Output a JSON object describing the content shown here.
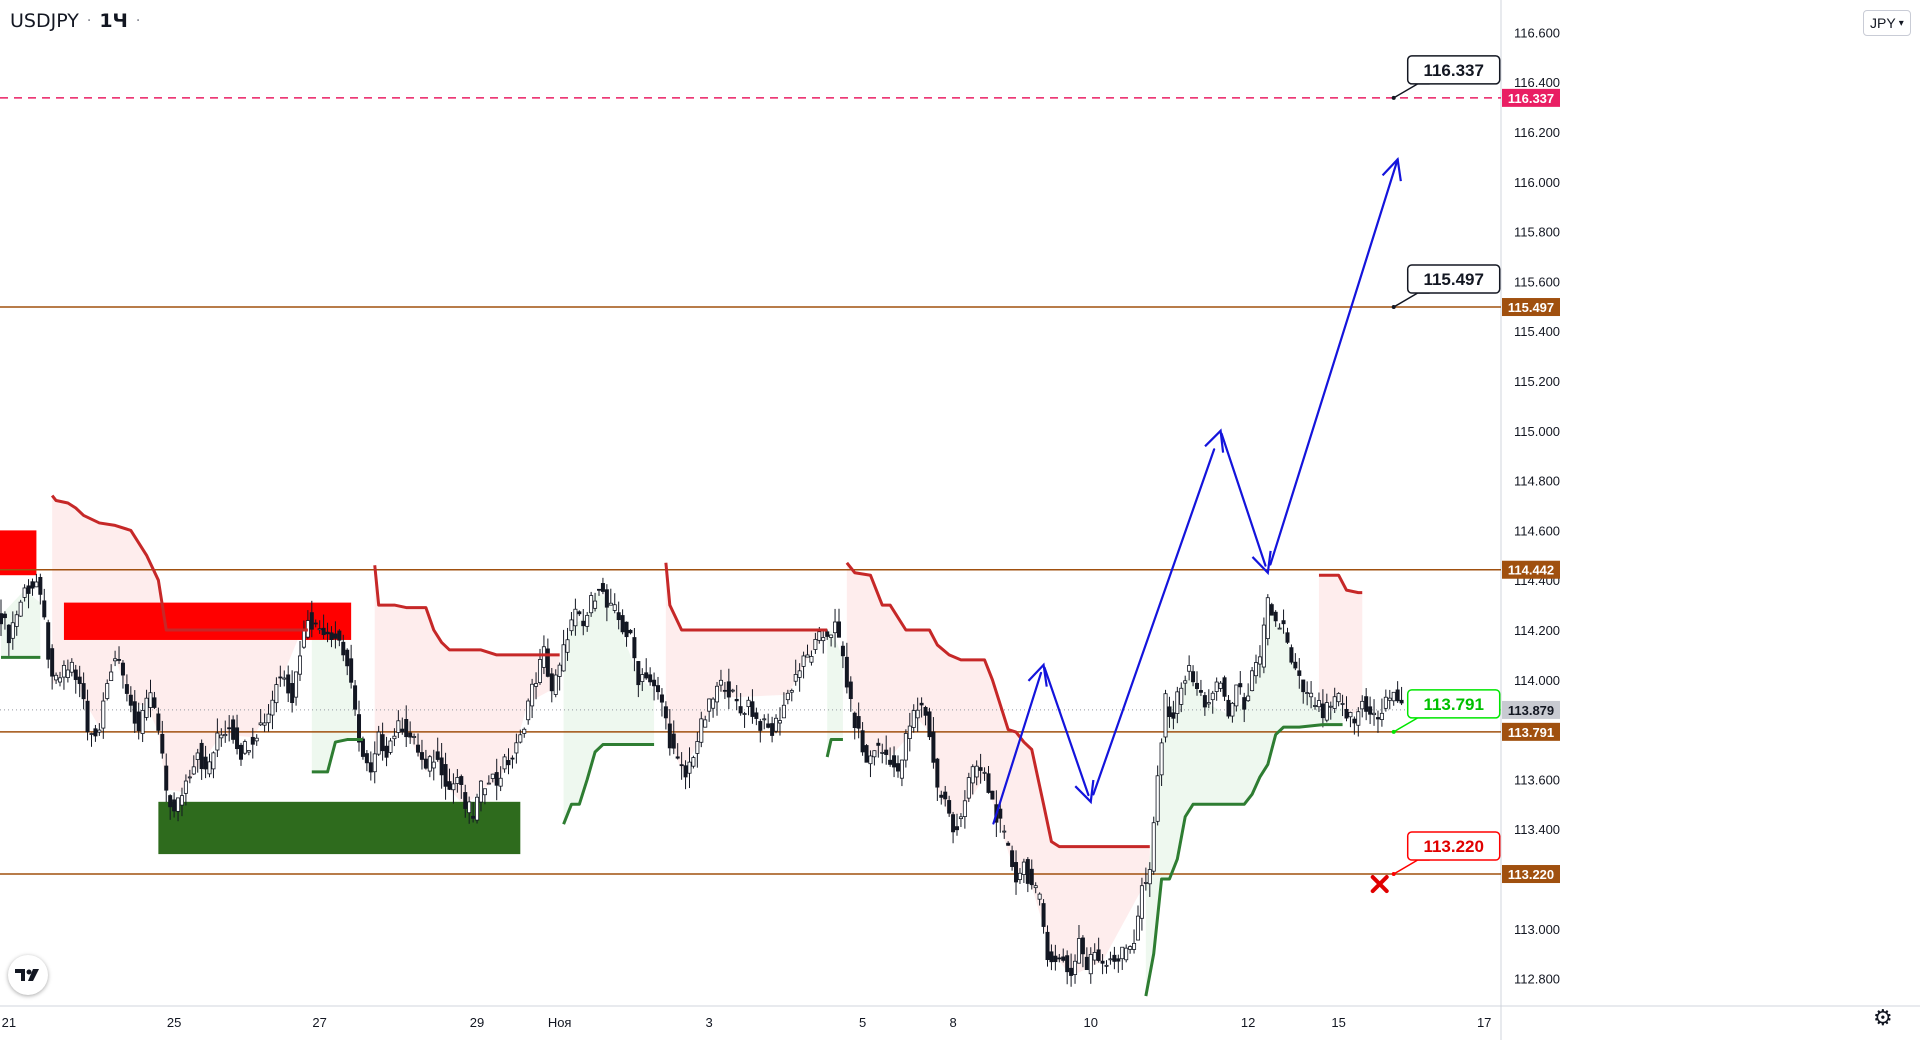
{
  "header": {
    "symbol": "USDJPY",
    "separator": "·",
    "interval": "1Ч",
    "dot": "·"
  },
  "currency": {
    "label": "JPY",
    "caret": "▾"
  },
  "logo_icon": "tradingview-logo-icon",
  "settings_icon": "gear-icon",
  "colors": {
    "up_candle": "#131722",
    "down_candle": "#131722",
    "bull_line": "#2e7d32",
    "bear_line": "#c62828",
    "bull_fill": "#e8f5e9",
    "bear_fill": "#fde7e7",
    "level_line": "#a0500f",
    "target_line": "#e91e63",
    "arrow": "#1414dc",
    "block_red": "#ff0000",
    "block_green": "#2e6b1d",
    "tp_box_border": "#131722",
    "buy_box_border": "#00e600",
    "sl_box_border": "#ff0000"
  },
  "chart_data": {
    "type": "candlestick",
    "title": "",
    "xlabel": "",
    "ylabel": "",
    "ylim": [
      112.69,
      116.73
    ],
    "y_ticks": [
      "116.600",
      "116.400",
      "116.200",
      "116.000",
      "115.800",
      "115.600",
      "115.400",
      "115.200",
      "115.000",
      "114.800",
      "114.600",
      "114.400",
      "114.200",
      "114.000",
      "113.600",
      "113.400",
      "113.000",
      "112.800"
    ],
    "x_ticks": [
      {
        "label": "21",
        "idx": 2
      },
      {
        "label": "25",
        "idx": 44
      },
      {
        "label": "27",
        "idx": 81
      },
      {
        "label": "29",
        "idx": 121
      },
      {
        "label": "Ноя",
        "idx": 142
      },
      {
        "label": "3",
        "idx": 180
      },
      {
        "label": "5",
        "idx": 219
      },
      {
        "label": "8",
        "idx": 242
      },
      {
        "label": "10",
        "idx": 277
      },
      {
        "label": "12",
        "idx": 317
      },
      {
        "label": "15",
        "idx": 340
      },
      {
        "label": "17",
        "idx": 377
      }
    ],
    "candles_total_slots": 381,
    "anchors": [
      [
        0,
        114.26
      ],
      [
        2,
        114.18
      ],
      [
        6,
        114.36
      ],
      [
        9,
        114.39
      ],
      [
        11,
        114.23
      ],
      [
        13,
        113.98
      ],
      [
        18,
        114.06
      ],
      [
        21,
        113.92
      ],
      [
        22,
        113.78
      ],
      [
        25,
        113.81
      ],
      [
        27,
        114.02
      ],
      [
        29,
        114.09
      ],
      [
        32,
        113.96
      ],
      [
        35,
        113.79
      ],
      [
        38,
        113.95
      ],
      [
        40,
        113.79
      ],
      [
        42,
        113.56
      ],
      [
        44,
        113.46
      ],
      [
        46,
        113.55
      ],
      [
        50,
        113.72
      ],
      [
        52,
        113.62
      ],
      [
        55,
        113.76
      ],
      [
        58,
        113.82
      ],
      [
        61,
        113.71
      ],
      [
        64,
        113.77
      ],
      [
        66,
        113.82
      ],
      [
        68,
        113.87
      ],
      [
        70,
        113.99
      ],
      [
        72,
        114.03
      ],
      [
        74,
        113.93
      ],
      [
        76,
        114.12
      ],
      [
        78,
        114.26
      ],
      [
        80,
        114.21
      ],
      [
        82,
        114.21
      ],
      [
        84,
        114.19
      ],
      [
        86,
        114.16
      ],
      [
        88,
        114.06
      ],
      [
        90,
        113.86
      ],
      [
        92,
        113.69
      ],
      [
        94,
        113.61
      ],
      [
        96,
        113.76
      ],
      [
        98,
        113.72
      ],
      [
        100,
        113.79
      ],
      [
        102,
        113.82
      ],
      [
        104,
        113.77
      ],
      [
        106,
        113.72
      ],
      [
        108,
        113.63
      ],
      [
        110,
        113.69
      ],
      [
        112,
        113.65
      ],
      [
        114,
        113.56
      ],
      [
        116,
        113.61
      ],
      [
        118,
        113.49
      ],
      [
        120,
        113.46
      ],
      [
        122,
        113.56
      ],
      [
        124,
        113.62
      ],
      [
        126,
        113.59
      ],
      [
        128,
        113.66
      ],
      [
        130,
        113.69
      ],
      [
        132,
        113.76
      ],
      [
        134,
        113.91
      ],
      [
        136,
        114.01
      ],
      [
        138,
        114.11
      ],
      [
        140,
        113.96
      ],
      [
        142,
        114.04
      ],
      [
        144,
        114.19
      ],
      [
        146,
        114.26
      ],
      [
        148,
        114.21
      ],
      [
        150,
        114.31
      ],
      [
        152,
        114.39
      ],
      [
        154,
        114.29
      ],
      [
        156,
        114.27
      ],
      [
        158,
        114.21
      ],
      [
        160,
        114.16
      ],
      [
        162,
        114.01
      ],
      [
        164,
        114.03
      ],
      [
        166,
        113.96
      ],
      [
        168,
        113.91
      ],
      [
        170,
        113.76
      ],
      [
        172,
        113.66
      ],
      [
        174,
        113.61
      ],
      [
        176,
        113.71
      ],
      [
        178,
        113.81
      ],
      [
        180,
        113.89
      ],
      [
        182,
        113.96
      ],
      [
        184,
        113.99
      ],
      [
        186,
        113.93
      ],
      [
        188,
        113.87
      ],
      [
        190,
        113.91
      ],
      [
        192,
        113.84
      ],
      [
        194,
        113.81
      ],
      [
        196,
        113.79
      ],
      [
        198,
        113.86
      ],
      [
        200,
        113.94
      ],
      [
        202,
        114.02
      ],
      [
        204,
        114.07
      ],
      [
        206,
        114.11
      ],
      [
        208,
        114.16
      ],
      [
        210,
        114.19
      ],
      [
        212,
        114.21
      ],
      [
        214,
        114.09
      ],
      [
        216,
        113.89
      ],
      [
        218,
        113.78
      ],
      [
        220,
        113.66
      ],
      [
        222,
        113.73
      ],
      [
        224,
        113.71
      ],
      [
        226,
        113.69
      ],
      [
        228,
        113.61
      ],
      [
        230,
        113.76
      ],
      [
        232,
        113.86
      ],
      [
        234,
        113.91
      ],
      [
        236,
        113.79
      ],
      [
        238,
        113.56
      ],
      [
        240,
        113.51
      ],
      [
        242,
        113.39
      ],
      [
        244,
        113.46
      ],
      [
        246,
        113.59
      ],
      [
        248,
        113.65
      ],
      [
        250,
        113.61
      ],
      [
        252,
        113.51
      ],
      [
        254,
        113.41
      ],
      [
        256,
        113.31
      ],
      [
        258,
        113.21
      ],
      [
        260,
        113.26
      ],
      [
        262,
        113.17
      ],
      [
        264,
        113.11
      ],
      [
        266,
        112.91
      ],
      [
        268,
        112.86
      ],
      [
        270,
        112.88
      ],
      [
        272,
        112.81
      ],
      [
        274,
        112.96
      ],
      [
        276,
        112.84
      ],
      [
        278,
        112.91
      ],
      [
        280,
        112.87
      ],
      [
        282,
        112.89
      ],
      [
        284,
        112.88
      ],
      [
        286,
        112.92
      ],
      [
        288,
        112.96
      ],
      [
        290,
        113.16
      ],
      [
        292,
        113.21
      ],
      [
        294,
        113.61
      ],
      [
        296,
        113.91
      ],
      [
        298,
        113.86
      ],
      [
        300,
        113.99
      ],
      [
        302,
        114.03
      ],
      [
        304,
        113.96
      ],
      [
        306,
        113.91
      ],
      [
        308,
        113.93
      ],
      [
        310,
        113.99
      ],
      [
        312,
        113.86
      ],
      [
        314,
        113.97
      ],
      [
        316,
        113.91
      ],
      [
        318,
        114.01
      ],
      [
        320,
        114.07
      ],
      [
        322,
        114.31
      ],
      [
        324,
        114.23
      ],
      [
        326,
        114.21
      ],
      [
        328,
        114.06
      ],
      [
        330,
        113.99
      ],
      [
        332,
        113.93
      ],
      [
        334,
        113.91
      ],
      [
        336,
        113.86
      ],
      [
        338,
        113.89
      ],
      [
        340,
        113.92
      ],
      [
        342,
        113.86
      ],
      [
        344,
        113.83
      ],
      [
        346,
        113.91
      ],
      [
        348,
        113.88
      ],
      [
        350,
        113.83
      ],
      [
        352,
        113.91
      ],
      [
        354,
        113.96
      ],
      [
        356,
        113.88
      ]
    ],
    "trail_bear": [
      [
        [
          13,
          114.74
        ],
        [
          14,
          114.72
        ],
        [
          17,
          114.71
        ],
        [
          19,
          114.69
        ],
        [
          21,
          114.66
        ],
        [
          25,
          114.63
        ],
        [
          29,
          114.62
        ],
        [
          33,
          114.6
        ],
        [
          37,
          114.5
        ],
        [
          40,
          114.4
        ],
        [
          42,
          114.2
        ],
        [
          46,
          114.2
        ],
        [
          56,
          114.2
        ],
        [
          64,
          114.2
        ],
        [
          68,
          114.2
        ],
        [
          72,
          114.2
        ],
        [
          78,
          114.2
        ]
      ],
      [
        [
          95,
          114.46
        ],
        [
          96,
          114.3
        ],
        [
          100,
          114.3
        ],
        [
          103,
          114.29
        ],
        [
          108,
          114.29
        ],
        [
          110,
          114.2
        ],
        [
          112,
          114.15
        ],
        [
          114,
          114.12
        ],
        [
          118,
          114.12
        ],
        [
          122,
          114.12
        ],
        [
          126,
          114.1
        ],
        [
          130,
          114.1
        ],
        [
          134,
          114.1
        ],
        [
          140,
          114.1
        ],
        [
          142,
          114.1
        ]
      ],
      [
        [
          169,
          114.47
        ],
        [
          170,
          114.3
        ],
        [
          173,
          114.2
        ],
        [
          176,
          114.2
        ],
        [
          182,
          114.2
        ],
        [
          186,
          114.2
        ],
        [
          200,
          114.2
        ],
        [
          206,
          114.2
        ],
        [
          210,
          114.2
        ]
      ],
      [
        [
          215,
          114.47
        ],
        [
          217,
          114.43
        ],
        [
          221,
          114.42
        ],
        [
          224,
          114.3
        ],
        [
          226,
          114.3
        ],
        [
          230,
          114.2
        ],
        [
          232,
          114.2
        ],
        [
          236,
          114.2
        ],
        [
          238,
          114.14
        ],
        [
          241,
          114.1
        ],
        [
          244,
          114.08
        ],
        [
          250,
          114.08
        ],
        [
          252,
          114.0
        ],
        [
          254,
          113.9
        ],
        [
          256,
          113.8
        ],
        [
          258,
          113.79
        ],
        [
          260,
          113.75
        ],
        [
          262,
          113.72
        ],
        [
          265,
          113.5
        ],
        [
          267,
          113.35
        ],
        [
          269,
          113.33
        ],
        [
          272,
          113.33
        ],
        [
          280,
          113.33
        ],
        [
          290,
          113.33
        ],
        [
          292,
          113.33
        ]
      ],
      [
        [
          335,
          114.42
        ],
        [
          340,
          114.42
        ],
        [
          342,
          114.36
        ],
        [
          345,
          114.35
        ],
        [
          346,
          114.35
        ]
      ]
    ],
    "trail_bull": [
      [
        [
          0,
          114.09
        ],
        [
          6,
          114.09
        ],
        [
          10,
          114.09
        ]
      ],
      [
        [
          79,
          113.63
        ],
        [
          83,
          113.63
        ],
        [
          85,
          113.75
        ],
        [
          88,
          113.76
        ],
        [
          92,
          113.76
        ]
      ],
      [
        [
          143,
          113.42
        ],
        [
          145,
          113.5
        ],
        [
          147,
          113.5
        ],
        [
          149,
          113.6
        ],
        [
          151,
          113.71
        ],
        [
          153,
          113.74
        ],
        [
          156,
          113.74
        ],
        [
          162,
          113.74
        ],
        [
          166,
          113.74
        ]
      ],
      [
        [
          210,
          113.69
        ],
        [
          211,
          113.76
        ],
        [
          214,
          113.76
        ]
      ],
      [
        [
          291,
          112.73
        ],
        [
          293,
          112.9
        ],
        [
          295,
          113.2
        ],
        [
          297,
          113.2
        ],
        [
          299,
          113.28
        ],
        [
          301,
          113.45
        ],
        [
          303,
          113.5
        ],
        [
          306,
          113.5
        ],
        [
          312,
          113.5
        ],
        [
          316,
          113.5
        ],
        [
          318,
          113.54
        ],
        [
          320,
          113.61
        ],
        [
          322,
          113.66
        ],
        [
          324,
          113.78
        ],
        [
          326,
          113.81
        ],
        [
          330,
          113.81
        ],
        [
          336,
          113.82
        ],
        [
          341,
          113.82
        ]
      ]
    ],
    "levels": [
      {
        "name": "target-2",
        "value": 116.337,
        "label": "116.337",
        "style": "dashed",
        "color": "#e91e63"
      },
      {
        "name": "target-1",
        "value": 115.497,
        "label": "115.497",
        "style": "solid",
        "color": "#a0500f"
      },
      {
        "name": "resistance",
        "value": 114.442,
        "label": "114.442",
        "style": "solid",
        "color": "#a0500f"
      },
      {
        "name": "entry",
        "value": 113.791,
        "label": "113.791",
        "style": "solid",
        "color": "#a0500f"
      },
      {
        "name": "stop",
        "value": 113.22,
        "label": "113.220",
        "style": "solid",
        "color": "#a0500f"
      }
    ],
    "current_price": {
      "value": 113.879,
      "label": "113.879"
    },
    "callouts": [
      {
        "name": "tp2-callout",
        "label": "116.337",
        "value": 116.337,
        "type": "target"
      },
      {
        "name": "tp1-callout",
        "label": "115.497",
        "value": 115.497,
        "type": "target"
      },
      {
        "name": "entry-callout",
        "label": "113.791",
        "value": 113.791,
        "type": "buy"
      },
      {
        "name": "stop-callout",
        "label": "113.220",
        "value": 113.22,
        "type": "stop"
      }
    ],
    "zones": [
      {
        "name": "supply-zone-1",
        "color": "red",
        "x0": -1,
        "x1": 9,
        "y0": 114.42,
        "y1": 114.6
      },
      {
        "name": "supply-zone-2",
        "color": "red",
        "x0": 16,
        "x1": 89,
        "y0": 114.16,
        "y1": 114.31
      },
      {
        "name": "demand-zone",
        "color": "green",
        "x0": 40,
        "x1": 132,
        "y0": 113.3,
        "y1": 113.51
      }
    ],
    "projection": [
      [
        252,
        113.41
      ],
      [
        265,
        114.06
      ],
      [
        277,
        113.51
      ],
      [
        310,
        115.0
      ],
      [
        322,
        114.43
      ],
      [
        355,
        116.09
      ]
    ]
  }
}
